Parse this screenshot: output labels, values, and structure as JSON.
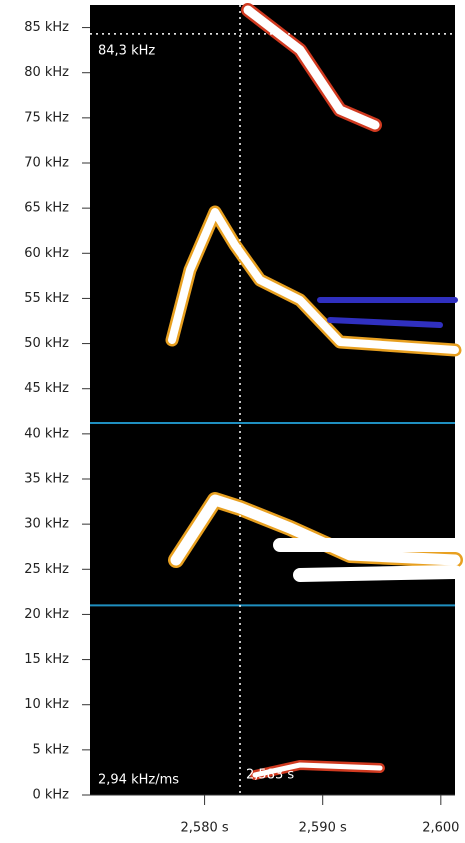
{
  "chart_data": {
    "type": "spectrogram",
    "xlim": [
      2.5703,
      2.6012
    ],
    "ylim": [
      0,
      87.5
    ],
    "yticks": [
      {
        "value": 0,
        "label": "0 kHz"
      },
      {
        "value": 5,
        "label": "5 kHz"
      },
      {
        "value": 10,
        "label": "10 kHz"
      },
      {
        "value": 15,
        "label": "15 kHz"
      },
      {
        "value": 20,
        "label": "20 kHz"
      },
      {
        "value": 25,
        "label": "25 kHz"
      },
      {
        "value": 30,
        "label": "30 kHz"
      },
      {
        "value": 35,
        "label": "35 kHz"
      },
      {
        "value": 40,
        "label": "40 kHz"
      },
      {
        "value": 45,
        "label": "45 kHz"
      },
      {
        "value": 50,
        "label": "50 kHz"
      },
      {
        "value": 55,
        "label": "55 kHz"
      },
      {
        "value": 60,
        "label": "60 kHz"
      },
      {
        "value": 65,
        "label": "65 kHz"
      },
      {
        "value": 70,
        "label": "70 kHz"
      },
      {
        "value": 75,
        "label": "75 kHz"
      },
      {
        "value": 80,
        "label": "80 kHz"
      },
      {
        "value": 85,
        "label": "85 kHz"
      }
    ],
    "xticks": [
      {
        "value": 2.58,
        "label": "2,580 s"
      },
      {
        "value": 2.59,
        "label": "2,590 s"
      },
      {
        "value": 2.6,
        "label": "2,600"
      }
    ],
    "cursor_frequency": {
      "value": 84.3,
      "label": "84,3 kHz"
    },
    "cursor_time": {
      "value": 2.583,
      "label": "2,583 s"
    },
    "slope_label": "2,94 kHz/ms",
    "band_lines": [
      41.2,
      21.0
    ],
    "band_line_color": "#1f8fc0"
  }
}
